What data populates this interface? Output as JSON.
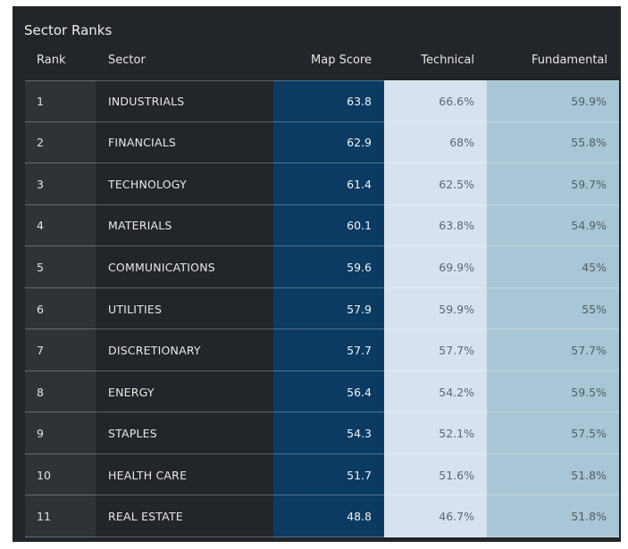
{
  "panel": {
    "title": "Sector Ranks"
  },
  "columns": {
    "rank": "Rank",
    "sector": "Sector",
    "map_score": "Map Score",
    "technical": "Technical",
    "fundamental": "Fundamental"
  },
  "colors": {
    "panel_bg": "#222529",
    "rank_bg": "#2f3237",
    "map_score_bg": "#0b3b63",
    "technical_bg": "#d6e3ee",
    "fundamental_bg": "#a8c6d5"
  },
  "rows": [
    {
      "rank": "1",
      "sector": "INDUSTRIALS",
      "map_score": "63.8",
      "technical": "66.6%",
      "fundamental": "59.9%"
    },
    {
      "rank": "2",
      "sector": "FINANCIALS",
      "map_score": "62.9",
      "technical": "68%",
      "fundamental": "55.8%"
    },
    {
      "rank": "3",
      "sector": "TECHNOLOGY",
      "map_score": "61.4",
      "technical": "62.5%",
      "fundamental": "59.7%"
    },
    {
      "rank": "4",
      "sector": "MATERIALS",
      "map_score": "60.1",
      "technical": "63.8%",
      "fundamental": "54.9%"
    },
    {
      "rank": "5",
      "sector": "COMMUNICATIONS",
      "map_score": "59.6",
      "technical": "69.9%",
      "fundamental": "45%"
    },
    {
      "rank": "6",
      "sector": "UTILITIES",
      "map_score": "57.9",
      "technical": "59.9%",
      "fundamental": "55%"
    },
    {
      "rank": "7",
      "sector": "DISCRETIONARY",
      "map_score": "57.7",
      "technical": "57.7%",
      "fundamental": "57.7%"
    },
    {
      "rank": "8",
      "sector": "ENERGY",
      "map_score": "56.4",
      "technical": "54.2%",
      "fundamental": "59.5%"
    },
    {
      "rank": "9",
      "sector": "STAPLES",
      "map_score": "54.3",
      "technical": "52.1%",
      "fundamental": "57.5%"
    },
    {
      "rank": "10",
      "sector": "HEALTH CARE",
      "map_score": "51.7",
      "technical": "51.6%",
      "fundamental": "51.8%"
    },
    {
      "rank": "11",
      "sector": "REAL ESTATE",
      "map_score": "48.8",
      "technical": "46.7%",
      "fundamental": "51.8%"
    }
  ]
}
